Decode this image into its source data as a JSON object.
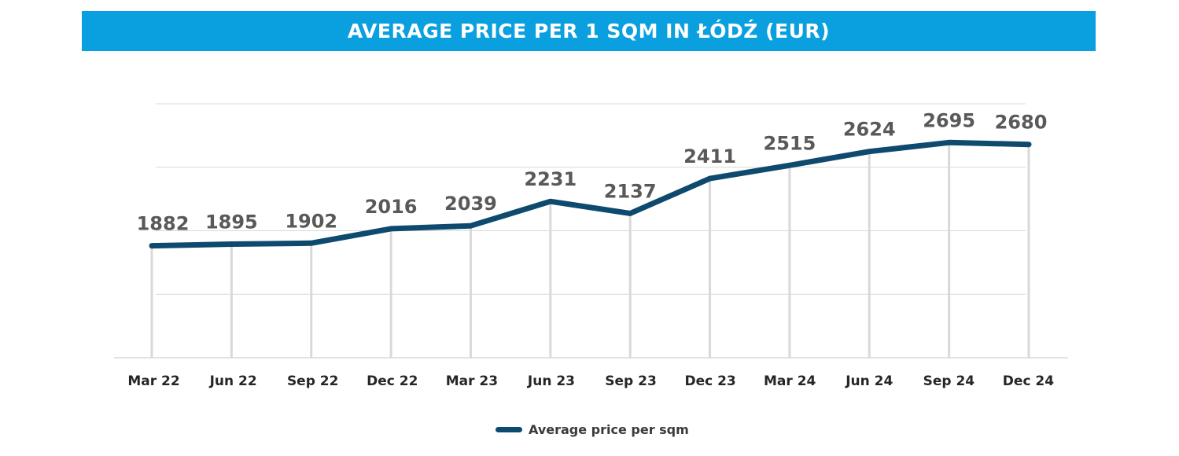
{
  "chart_data": {
    "type": "line",
    "title": "AVERAGE PRICE PER 1 SQM IN ŁÓDŹ (EUR)",
    "categories": [
      "Mar 22",
      "Jun 22",
      "Sep 22",
      "Dec 22",
      "Mar 23",
      "Jun 23",
      "Sep 23",
      "Dec 23",
      "Mar 24",
      "Jun 24",
      "Sep 24",
      "Dec 24"
    ],
    "series": [
      {
        "name": "Average price per sqm",
        "values": [
          1882,
          1895,
          1902,
          2016,
          2039,
          2231,
          2137,
          2411,
          2515,
          2624,
          2695,
          2680
        ]
      }
    ],
    "ylim": [
      1000,
      3000
    ],
    "grid": true,
    "legend": "bottom-center",
    "data_labels": true
  },
  "colors": {
    "title_bar": "#0aa0e0",
    "line": "#0d4a6e",
    "grid": "#d9d9d9",
    "text": "#595959",
    "axis_text": "#262626"
  }
}
